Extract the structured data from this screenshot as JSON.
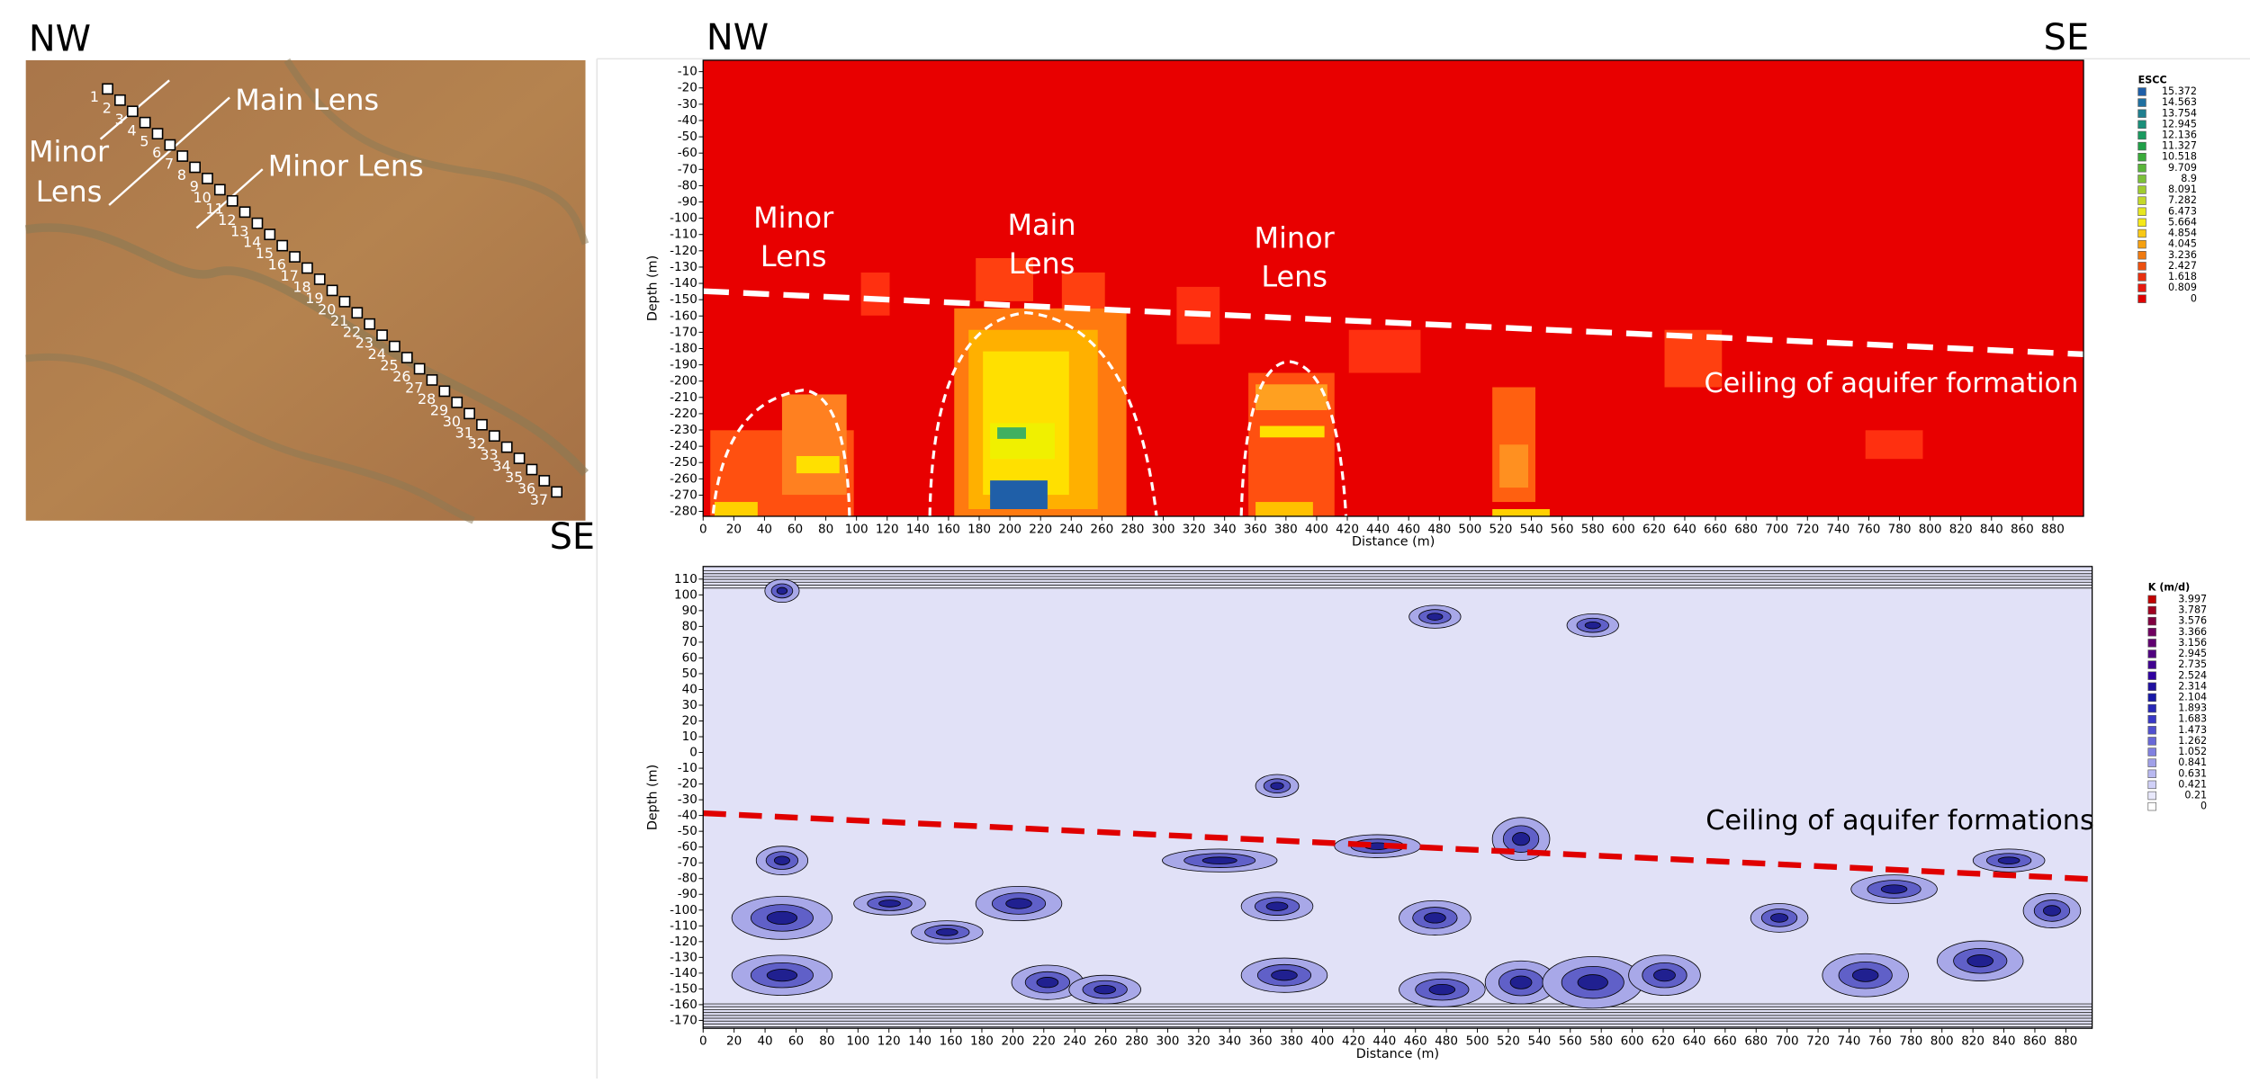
{
  "map": {
    "nw": "NW",
    "se": "SE",
    "stations": [
      1,
      2,
      3,
      4,
      5,
      6,
      7,
      8,
      9,
      10,
      11,
      12,
      13,
      14,
      15,
      16,
      17,
      18,
      19,
      20,
      21,
      22,
      23,
      24,
      25,
      26,
      27,
      28,
      29,
      30,
      31,
      32,
      33,
      34,
      35,
      36,
      37
    ],
    "annotations": [
      "Main Lens",
      "Minor Lens",
      "Minor",
      "Lens"
    ]
  },
  "chart_data": [
    {
      "type": "heatmap",
      "corner_labels": [
        "NW",
        "SE"
      ],
      "xlabel": "Distance (m)",
      "ylabel": "Depth (m)",
      "xlim": [
        0,
        900
      ],
      "ylim": [
        -283,
        -3
      ],
      "xticks": [
        0,
        20,
        40,
        60,
        80,
        100,
        120,
        140,
        160,
        180,
        200,
        220,
        240,
        260,
        280,
        300,
        320,
        340,
        360,
        380,
        400,
        420,
        440,
        460,
        480,
        500,
        520,
        540,
        560,
        580,
        600,
        620,
        640,
        660,
        680,
        700,
        720,
        740,
        760,
        780,
        800,
        820,
        840,
        860,
        880
      ],
      "yticks": [
        -10,
        -20,
        -30,
        -40,
        -50,
        -60,
        -70,
        -80,
        -90,
        -100,
        -110,
        -120,
        -130,
        -140,
        -150,
        -160,
        -170,
        -180,
        -190,
        -200,
        -210,
        -220,
        -230,
        -240,
        -250,
        -260,
        -270,
        -280
      ],
      "legend_title": "ESCC",
      "legend_values": [
        15.372,
        14.563,
        13.754,
        12.945,
        12.136,
        11.327,
        10.518,
        9.709,
        8.9,
        8.091,
        7.282,
        6.473,
        5.664,
        4.854,
        4.045,
        3.236,
        2.427,
        1.618,
        0.809,
        0
      ],
      "legend_colors": [
        "#1f5fa8",
        "#2070a0",
        "#1f7f8f",
        "#1a8f7a",
        "#1a9a60",
        "#20a048",
        "#3aab3a",
        "#5ab53a",
        "#7cc03a",
        "#a0cc30",
        "#c4d82a",
        "#e6e620",
        "#f5e818",
        "#f8c815",
        "#f5a010",
        "#f07a10",
        "#ec5010",
        "#e83010",
        "#e61a10",
        "#e00000"
      ],
      "annotations": [
        {
          "lines": [
            "Minor",
            "Lens"
          ]
        },
        {
          "lines": [
            "Main",
            "Lens"
          ]
        },
        {
          "lines": [
            "Minor",
            "Lens"
          ]
        }
      ],
      "ceiling_label": "Ceiling of aquifer formation"
    },
    {
      "type": "contour",
      "xlabel": "Distance (m)",
      "ylabel": "Depth (m)",
      "xlim": [
        0,
        897
      ],
      "ylim": [
        -175,
        118
      ],
      "xticks": [
        0,
        20,
        40,
        60,
        80,
        100,
        120,
        140,
        160,
        180,
        200,
        220,
        240,
        260,
        280,
        300,
        320,
        340,
        360,
        380,
        400,
        420,
        440,
        460,
        480,
        500,
        520,
        540,
        560,
        580,
        600,
        620,
        640,
        660,
        680,
        700,
        720,
        740,
        760,
        780,
        800,
        820,
        840,
        860,
        880
      ],
      "yticks": [
        110,
        100,
        90,
        80,
        70,
        60,
        50,
        40,
        30,
        20,
        10,
        0,
        -10,
        -20,
        -30,
        -40,
        -50,
        -60,
        -70,
        -80,
        -90,
        -100,
        -110,
        -120,
        -130,
        -140,
        -150,
        -160,
        -170
      ],
      "legend_title": "K (m/d)",
      "legend_values": [
        3.997,
        3.787,
        3.576,
        3.366,
        3.156,
        2.945,
        2.735,
        2.524,
        2.314,
        2.104,
        1.893,
        1.683,
        1.473,
        1.262,
        1.052,
        0.841,
        0.631,
        0.421,
        0.21,
        0
      ],
      "legend_colors": [
        "#c00000",
        "#a00020",
        "#800040",
        "#700060",
        "#600070",
        "#500080",
        "#400090",
        "#3000a0",
        "#2010a0",
        "#1818a8",
        "#2828b8",
        "#3838c8",
        "#5050d0",
        "#6868d8",
        "#8080e0",
        "#a0a0e8",
        "#b8b8f0",
        "#d0d0f8",
        "#e8e8fc",
        "#ffffff"
      ],
      "ceiling_label": "Ceiling of aquifer formations"
    }
  ]
}
